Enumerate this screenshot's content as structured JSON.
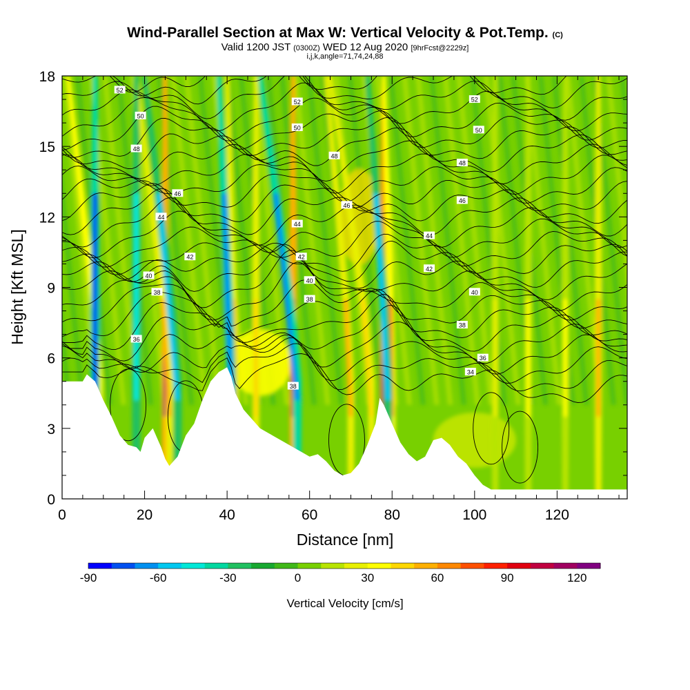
{
  "header": {
    "title": "Wind-Parallel Section at Max W: Vertical Velocity & Pot.Temp.",
    "copyright": "(C)",
    "valid_prefix": "Valid 1200 JST",
    "valid_z": "(0300Z)",
    "valid_date": "WED 12 Aug 2020",
    "forecast": "[9hrFcst@2229z]",
    "indices": "i,j,k,angle=71,74,24,88"
  },
  "chart_data": {
    "type": "heatmap",
    "xlabel": "Distance [nm]",
    "ylabel": "Height [Kft MSL]",
    "xlim": [
      0,
      137
    ],
    "ylim": [
      0,
      18
    ],
    "x_ticks": [
      0,
      20,
      40,
      60,
      80,
      100,
      120
    ],
    "x_tick_labels": [
      "0",
      "20",
      "40",
      "60",
      "80",
      "100",
      "120"
    ],
    "y_ticks": [
      0,
      3,
      6,
      9,
      12,
      15,
      18
    ],
    "y_tick_labels": [
      "0",
      "3",
      "6",
      "9",
      "12",
      "15",
      "18"
    ],
    "colorbar": {
      "title": "Vertical Velocity [cm/s]",
      "min": -90,
      "max": 130,
      "step": 10,
      "tick_values": [
        -90,
        -60,
        -30,
        0,
        30,
        60,
        90,
        120
      ],
      "tick_labels": [
        "-90",
        "-60",
        "-30",
        "0",
        "30",
        "60",
        "90",
        "120"
      ],
      "colors": [
        "#0000ff",
        "#0050f0",
        "#0090f0",
        "#00c8f0",
        "#00e8d8",
        "#00d8a0",
        "#20c060",
        "#18a830",
        "#40b818",
        "#78d000",
        "#b8e400",
        "#e8f000",
        "#ffff00",
        "#ffd800",
        "#ffb000",
        "#ff8800",
        "#ff5000",
        "#ff2000",
        "#e00010",
        "#c00040",
        "#a00060",
        "#800080"
      ]
    },
    "terrain": [
      [
        0,
        5.0
      ],
      [
        5,
        5.0
      ],
      [
        6,
        5.3
      ],
      [
        8,
        5.0
      ],
      [
        10,
        4.2
      ],
      [
        12,
        3.5
      ],
      [
        14,
        2.7
      ],
      [
        16,
        2.3
      ],
      [
        18,
        2.2
      ],
      [
        19,
        2.0
      ],
      [
        20,
        2.6
      ],
      [
        22,
        3.0
      ],
      [
        24,
        2.2
      ],
      [
        25,
        1.7
      ],
      [
        26,
        1.4
      ],
      [
        28,
        1.8
      ],
      [
        30,
        2.7
      ],
      [
        32,
        3.2
      ],
      [
        34,
        4.2
      ],
      [
        36,
        5.0
      ],
      [
        38,
        5.4
      ],
      [
        40,
        5.6
      ],
      [
        41,
        5.2
      ],
      [
        42,
        4.5
      ],
      [
        44,
        3.8
      ],
      [
        46,
        3.4
      ],
      [
        48,
        3.0
      ],
      [
        50,
        2.8
      ],
      [
        52,
        2.6
      ],
      [
        54,
        2.4
      ],
      [
        56,
        2.2
      ],
      [
        58,
        2.0
      ],
      [
        60,
        1.8
      ],
      [
        62,
        1.9
      ],
      [
        64,
        1.6
      ],
      [
        66,
        1.2
      ],
      [
        68,
        1.0
      ],
      [
        70,
        1.1
      ],
      [
        72,
        1.5
      ],
      [
        74,
        2.3
      ],
      [
        76,
        3.2
      ],
      [
        77,
        4.3
      ],
      [
        78,
        4.0
      ],
      [
        80,
        3.2
      ],
      [
        82,
        2.4
      ],
      [
        84,
        1.9
      ],
      [
        86,
        1.6
      ],
      [
        88,
        1.8
      ],
      [
        90,
        2.5
      ],
      [
        92,
        2.6
      ],
      [
        94,
        2.3
      ],
      [
        96,
        1.8
      ],
      [
        98,
        1.5
      ],
      [
        100,
        1.0
      ],
      [
        102,
        0.6
      ],
      [
        104,
        0.4
      ],
      [
        110,
        0.4
      ],
      [
        120,
        0.4
      ],
      [
        130,
        0.4
      ],
      [
        137,
        0.4
      ]
    ],
    "updrafts": [
      {
        "x": 9,
        "w": 60,
        "lean": -7.5
      },
      {
        "x": 25,
        "w": 115,
        "lean": 0
      },
      {
        "x": 26,
        "w": 55,
        "lean": -8
      },
      {
        "x": 42,
        "w": 55,
        "lean": -2
      },
      {
        "x": 47,
        "w": 40,
        "lean": 0
      },
      {
        "x": 56,
        "w": 100,
        "lean": 0
      },
      {
        "x": 70,
        "w": 55,
        "lean": -6
      },
      {
        "x": 75,
        "w": 40,
        "lean": -10
      },
      {
        "x": 78,
        "w": 125,
        "lean": 0
      },
      {
        "x": 80,
        "w": 60,
        "lean": -2
      },
      {
        "x": 105,
        "w": 25,
        "lean": 0
      },
      {
        "x": 113,
        "w": 35,
        "lean": 0
      },
      {
        "x": 122,
        "w": 30,
        "lean": 0
      },
      {
        "x": 130,
        "w": 55,
        "lean": 0
      }
    ],
    "downdrafts": [
      {
        "x": 8,
        "w": -75,
        "lean": 0
      },
      {
        "x": 18,
        "w": -45,
        "lean": 0
      },
      {
        "x": 28,
        "w": -60,
        "lean": -8
      },
      {
        "x": 41,
        "w": -70,
        "lean": -3
      },
      {
        "x": 57,
        "w": -65,
        "lean": -9
      },
      {
        "x": 79,
        "w": -55,
        "lean": -5
      }
    ],
    "theta_contours": {
      "levels": [
        34,
        36,
        38,
        40,
        42,
        44,
        46,
        48,
        50,
        52
      ],
      "labels": [
        {
          "text": "52",
          "x": 14,
          "y": 17.4
        },
        {
          "text": "52",
          "x": 57,
          "y": 16.9
        },
        {
          "text": "52",
          "x": 100,
          "y": 17.0
        },
        {
          "text": "50",
          "x": 19,
          "y": 16.3
        },
        {
          "text": "50",
          "x": 57,
          "y": 15.8
        },
        {
          "text": "50",
          "x": 101,
          "y": 15.7
        },
        {
          "text": "48",
          "x": 18,
          "y": 14.9
        },
        {
          "text": "48",
          "x": 66,
          "y": 14.6
        },
        {
          "text": "48",
          "x": 97,
          "y": 14.3
        },
        {
          "text": "46",
          "x": 28,
          "y": 13.0
        },
        {
          "text": "46",
          "x": 69,
          "y": 12.5
        },
        {
          "text": "46",
          "x": 97,
          "y": 12.7
        },
        {
          "text": "44",
          "x": 24,
          "y": 12.0
        },
        {
          "text": "44",
          "x": 57,
          "y": 11.7
        },
        {
          "text": "44",
          "x": 89,
          "y": 11.2
        },
        {
          "text": "42",
          "x": 31,
          "y": 10.3
        },
        {
          "text": "42",
          "x": 58,
          "y": 10.3
        },
        {
          "text": "42",
          "x": 89,
          "y": 9.8
        },
        {
          "text": "40",
          "x": 21,
          "y": 9.5
        },
        {
          "text": "40",
          "x": 60,
          "y": 9.3
        },
        {
          "text": "40",
          "x": 100,
          "y": 8.8
        },
        {
          "text": "38",
          "x": 23,
          "y": 8.8
        },
        {
          "text": "38",
          "x": 60,
          "y": 8.5
        },
        {
          "text": "38",
          "x": 97,
          "y": 7.4
        },
        {
          "text": "36",
          "x": 18,
          "y": 6.8
        },
        {
          "text": "36",
          "x": 102,
          "y": 6.0
        },
        {
          "text": "34",
          "x": 99,
          "y": 5.4
        },
        {
          "text": "38",
          "x": 56,
          "y": 4.8
        }
      ]
    }
  }
}
